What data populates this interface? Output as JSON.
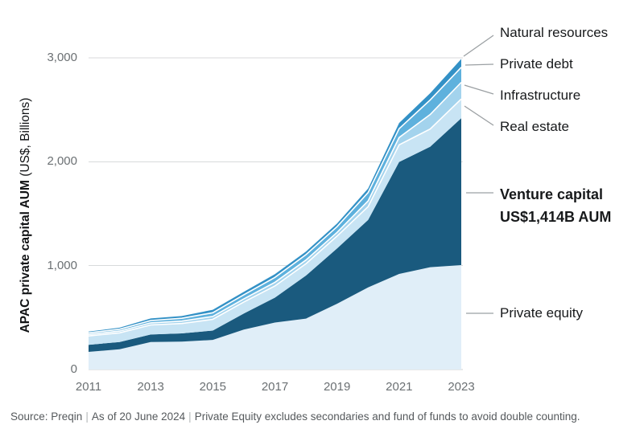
{
  "chart_data": {
    "type": "area",
    "stacked": true,
    "ylabel_bold": "APAC private capital AUM",
    "ylabel_unit": " (US$, Billions)",
    "x": [
      2011,
      2012,
      2013,
      2014,
      2015,
      2016,
      2017,
      2018,
      2019,
      2020,
      2021,
      2022,
      2023
    ],
    "x_tick_labels": [
      "2011",
      "2013",
      "2015",
      "2017",
      "2019",
      "2021",
      "2023"
    ],
    "y_tick_values": [
      0,
      1000,
      2000,
      3000
    ],
    "y_tick_labels": [
      "0",
      "1,000",
      "2,000",
      "3,000"
    ],
    "ylim": [
      0,
      3000
    ],
    "units": "US$ Billions",
    "series": [
      {
        "name": "Private equity",
        "color": "#e0eef8",
        "values": [
          170,
          195,
          265,
          268,
          285,
          385,
          452,
          490,
          633,
          790,
          920,
          985,
          1005
        ]
      },
      {
        "name": "Venture capital",
        "color": "#1a5a7e",
        "values": [
          68,
          70,
          72,
          80,
          90,
          155,
          240,
          415,
          533,
          650,
          1078,
          1160,
          1414
        ]
      },
      {
        "name": "Real estate",
        "color": "#c8e4f4",
        "values": [
          85,
          88,
          92,
          95,
          108,
          110,
          112,
          113,
          118,
          128,
          165,
          170,
          185
        ]
      },
      {
        "name": "Infrastructure",
        "color": "#a3d3ed",
        "values": [
          15,
          17,
          20,
          23,
          28,
          30,
          36,
          36,
          36,
          55,
          70,
          140,
          160
        ]
      },
      {
        "name": "Private debt",
        "color": "#5eb1dd",
        "values": [
          15,
          18,
          23,
          27,
          36,
          40,
          47,
          52,
          55,
          80,
          85,
          140,
          145
        ]
      },
      {
        "name": "Natural resources",
        "color": "#3391c6",
        "values": [
          13,
          15,
          20,
          22,
          28,
          28,
          31,
          30,
          30,
          40,
          55,
          65,
          80
        ]
      }
    ],
    "annotations": [
      {
        "id": "natural-resources",
        "label": "Natural resources",
        "emphasis": false
      },
      {
        "id": "private-debt",
        "label": "Private debt",
        "emphasis": false
      },
      {
        "id": "infrastructure",
        "label": "Infrastructure",
        "emphasis": false
      },
      {
        "id": "real-estate",
        "label": "Real estate",
        "emphasis": false
      },
      {
        "id": "venture-capital",
        "label": "Venture capital",
        "value_line": "US$1,414B AUM",
        "emphasis": true
      },
      {
        "id": "private-equity",
        "label": "Private equity",
        "emphasis": false
      }
    ],
    "legend_position": "right",
    "grid": true
  },
  "palette": {
    "grid_line": "#d8dadb",
    "baseline": "#cfd1d2",
    "leader_line": "#9ba0a3",
    "tick_text": "#6b7073",
    "band_separator": "#ffffff"
  },
  "footer": {
    "segments": [
      "Source: Preqin",
      "As of 20 June 2024",
      "Private Equity excludes secondaries and fund of funds to avoid double counting."
    ]
  }
}
